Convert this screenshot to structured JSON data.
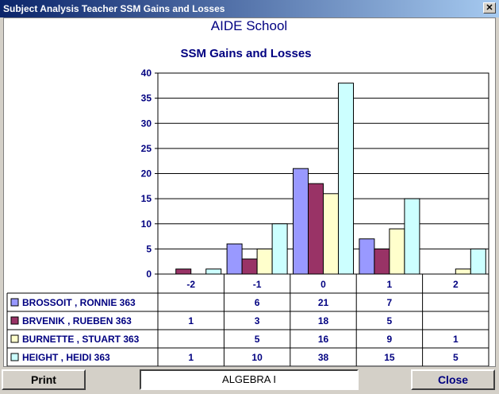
{
  "window": {
    "title": "Subject Analysis Teacher SSM Gains and Losses",
    "close_glyph": "✕"
  },
  "chart_data": {
    "type": "bar",
    "title": "AIDE School",
    "subtitle": "SSM Gains and Losses",
    "categories": [
      "-2",
      "-1",
      "0",
      "1",
      "2"
    ],
    "ylim": [
      0,
      40
    ],
    "yticks": [
      0,
      5,
      10,
      15,
      20,
      25,
      30,
      35,
      40
    ],
    "grid": true,
    "series": [
      {
        "name": "BROSSOIT , RONNIE 363",
        "color": "#9999ff",
        "values": [
          0,
          6,
          21,
          7,
          0
        ],
        "labels": [
          "",
          "6",
          "21",
          "7",
          ""
        ]
      },
      {
        "name": "BRVENIK , RUEBEN 363",
        "color": "#993366",
        "values": [
          1,
          3,
          18,
          5,
          0
        ],
        "labels": [
          "1",
          "3",
          "18",
          "5",
          ""
        ]
      },
      {
        "name": "BURNETTE , STUART 363",
        "color": "#ffffcc",
        "values": [
          0,
          5,
          16,
          9,
          1
        ],
        "labels": [
          "",
          "5",
          "16",
          "9",
          "1"
        ]
      },
      {
        "name": "HEIGHT , HEIDI 363",
        "color": "#ccffff",
        "values": [
          1,
          10,
          38,
          15,
          5
        ],
        "labels": [
          "1",
          "10",
          "38",
          "15",
          "5"
        ]
      }
    ]
  },
  "footer": {
    "print_label": "Print",
    "subject": "ALGEBRA I",
    "close_label": "Close"
  }
}
